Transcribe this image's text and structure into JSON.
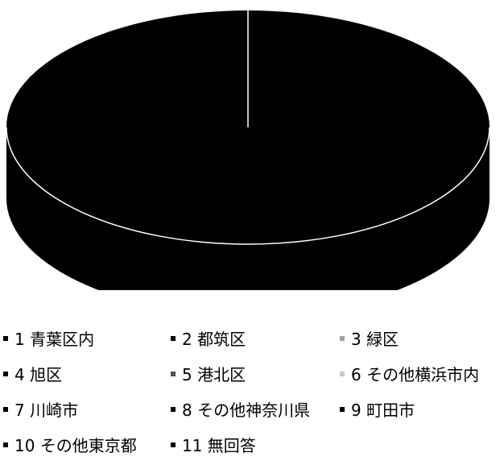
{
  "chart_data": {
    "type": "pie",
    "style": "3d",
    "categories": [
      "1 青葉区内",
      "2 都筑区",
      "3 緑区",
      "4 旭区",
      "5 港北区",
      "6 その他横浜市内",
      "7 川崎市",
      "8 その他神奈川県",
      "9 町田市",
      "10 その他東京都",
      "11 無回答"
    ],
    "values": [
      100,
      0,
      0,
      0,
      0,
      0,
      0,
      0,
      0,
      0,
      0
    ],
    "colors": [
      "#000000",
      "#000000",
      "#a0a0a0",
      "#000000",
      "#505050",
      "#c8c8c8",
      "#000000",
      "#000000",
      "#000000",
      "#000000",
      "#000000"
    ],
    "legend_position": "bottom"
  }
}
